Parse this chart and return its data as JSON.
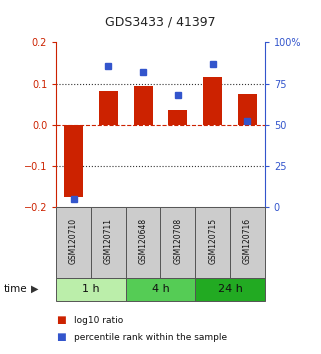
{
  "title": "GDS3433 / 41397",
  "samples": [
    "GSM120710",
    "GSM120711",
    "GSM120648",
    "GSM120708",
    "GSM120715",
    "GSM120716"
  ],
  "log10_ratio": [
    -0.175,
    0.082,
    0.095,
    0.035,
    0.115,
    0.075
  ],
  "percentile_rank": [
    5,
    86,
    82,
    68,
    87,
    52
  ],
  "ylim_left": [
    -0.2,
    0.2
  ],
  "ylim_right": [
    0,
    100
  ],
  "yticks_left": [
    -0.2,
    -0.1,
    0,
    0.1,
    0.2
  ],
  "yticks_right": [
    0,
    25,
    50,
    75,
    100
  ],
  "ytick_labels_right": [
    "0",
    "25",
    "50",
    "75",
    "100%"
  ],
  "dotted_lines": [
    0.1,
    -0.1
  ],
  "zero_line": 0.0,
  "bar_color": "#cc2200",
  "dot_color": "#3355cc",
  "bar_width": 0.55,
  "time_groups": [
    {
      "label": "1 h",
      "start": 0,
      "end": 2,
      "color": "#bbeeaa"
    },
    {
      "label": "4 h",
      "start": 2,
      "end": 4,
      "color": "#55cc55"
    },
    {
      "label": "24 h",
      "start": 4,
      "end": 6,
      "color": "#22aa22"
    }
  ],
  "sample_box_color": "#cccccc",
  "sample_box_edge": "#555555",
  "left_axis_color": "#cc2200",
  "right_axis_color": "#3355cc",
  "background_color": "#ffffff",
  "legend_red_label": "log10 ratio",
  "legend_blue_label": "percentile rank within the sample",
  "time_label": "time",
  "fig_width": 3.21,
  "fig_height": 3.54
}
